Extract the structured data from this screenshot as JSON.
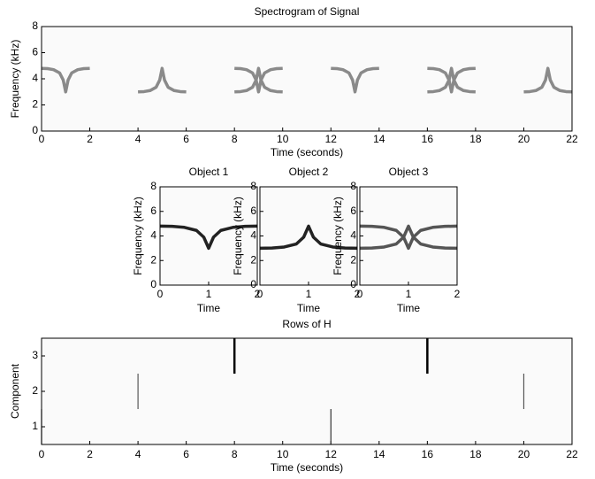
{
  "chart_data": [
    {
      "type": "line",
      "title": "Spectrogram of Signal",
      "xlabel": "Time (seconds)",
      "ylabel": "Frequency (kHz)",
      "xlim": [
        0,
        22
      ],
      "xticks": [
        0,
        2,
        4,
        6,
        8,
        10,
        12,
        14,
        16,
        18,
        20,
        22
      ],
      "ylim": [
        0,
        8
      ],
      "yticks": [
        0,
        2,
        4,
        6,
        8
      ],
      "series": [
        {
          "color": "#8a8a8a",
          "x": [
            0,
            0.25,
            0.5,
            0.75,
            0.9,
            1,
            1.1,
            1.25,
            1.5,
            1.75,
            2
          ],
          "values": [
            4.8,
            4.78,
            4.7,
            4.45,
            3.9,
            3.0,
            3.9,
            4.45,
            4.7,
            4.78,
            4.8
          ]
        },
        {
          "color": "#8a8a8a",
          "x": [
            4,
            4.25,
            4.5,
            4.75,
            4.9,
            5,
            5.1,
            5.25,
            5.5,
            5.75,
            6
          ],
          "values": [
            3.0,
            3.02,
            3.1,
            3.35,
            3.9,
            4.8,
            3.9,
            3.35,
            3.1,
            3.02,
            3.0
          ]
        },
        {
          "color": "#8a8a8a",
          "x": [
            8,
            8.25,
            8.5,
            8.75,
            8.9,
            9,
            9.1,
            9.25,
            9.5,
            9.75,
            10
          ],
          "values": [
            4.8,
            4.78,
            4.7,
            4.45,
            3.9,
            3.0,
            3.9,
            4.45,
            4.7,
            4.78,
            4.8
          ]
        },
        {
          "color": "#8a8a8a",
          "x": [
            8,
            8.25,
            8.5,
            8.75,
            8.9,
            9,
            9.1,
            9.25,
            9.5,
            9.75,
            10
          ],
          "values": [
            3.0,
            3.02,
            3.1,
            3.35,
            3.9,
            4.8,
            3.9,
            3.35,
            3.1,
            3.02,
            3.0
          ]
        },
        {
          "color": "#8a8a8a",
          "x": [
            12,
            12.25,
            12.5,
            12.75,
            12.9,
            13,
            13.1,
            13.25,
            13.5,
            13.75,
            14
          ],
          "values": [
            4.8,
            4.78,
            4.7,
            4.45,
            3.9,
            3.0,
            3.9,
            4.45,
            4.7,
            4.78,
            4.8
          ]
        },
        {
          "color": "#8a8a8a",
          "x": [
            16,
            16.25,
            16.5,
            16.75,
            16.9,
            17,
            17.1,
            17.25,
            17.5,
            17.75,
            18
          ],
          "values": [
            4.8,
            4.78,
            4.7,
            4.45,
            3.9,
            3.0,
            3.9,
            4.45,
            4.7,
            4.78,
            4.8
          ]
        },
        {
          "color": "#8a8a8a",
          "x": [
            16,
            16.25,
            16.5,
            16.75,
            16.9,
            17,
            17.1,
            17.25,
            17.5,
            17.75,
            18
          ],
          "values": [
            3.0,
            3.02,
            3.1,
            3.35,
            3.9,
            4.8,
            3.9,
            3.35,
            3.1,
            3.02,
            3.0
          ]
        },
        {
          "color": "#8a8a8a",
          "x": [
            20,
            20.25,
            20.5,
            20.75,
            20.9,
            21,
            21.1,
            21.25,
            21.5,
            21.75,
            22
          ],
          "values": [
            3.0,
            3.02,
            3.1,
            3.35,
            3.9,
            4.8,
            3.9,
            3.35,
            3.1,
            3.02,
            3.0
          ]
        }
      ]
    },
    {
      "type": "line",
      "title": "Object 1",
      "xlabel": "Time",
      "ylabel": "Frequency (kHz)",
      "xlim": [
        0,
        2
      ],
      "xticks": [
        0,
        1,
        2
      ],
      "ylim": [
        0,
        8
      ],
      "yticks": [
        0,
        2,
        4,
        6,
        8
      ],
      "series": [
        {
          "color": "#222222",
          "x": [
            0,
            0.25,
            0.5,
            0.75,
            0.9,
            1,
            1.1,
            1.25,
            1.5,
            1.75,
            2
          ],
          "values": [
            4.8,
            4.78,
            4.7,
            4.45,
            3.9,
            3.0,
            3.9,
            4.45,
            4.7,
            4.78,
            4.8
          ]
        }
      ]
    },
    {
      "type": "line",
      "title": "Object 2",
      "xlabel": "Time",
      "ylabel": "Frequency (kHz)",
      "xlim": [
        0,
        2
      ],
      "xticks": [
        0,
        1,
        2
      ],
      "ylim": [
        0,
        8
      ],
      "yticks": [
        0,
        2,
        4,
        6,
        8
      ],
      "series": [
        {
          "color": "#222222",
          "x": [
            0,
            0.25,
            0.5,
            0.75,
            0.9,
            1,
            1.1,
            1.25,
            1.5,
            1.75,
            2
          ],
          "values": [
            3.0,
            3.02,
            3.1,
            3.35,
            3.9,
            4.8,
            3.9,
            3.35,
            3.1,
            3.02,
            3.0
          ]
        }
      ]
    },
    {
      "type": "line",
      "title": "Object 3",
      "xlabel": "Time",
      "ylabel": "Frequency (kHz)",
      "xlim": [
        0,
        2
      ],
      "xticks": [
        0,
        1,
        2
      ],
      "ylim": [
        0,
        8
      ],
      "yticks": [
        0,
        2,
        4,
        6,
        8
      ],
      "series": [
        {
          "color": "#555555",
          "x": [
            0,
            0.25,
            0.5,
            0.75,
            0.9,
            1,
            1.1,
            1.25,
            1.5,
            1.75,
            2
          ],
          "values": [
            4.8,
            4.78,
            4.7,
            4.45,
            3.9,
            3.0,
            3.9,
            4.45,
            4.7,
            4.78,
            4.8
          ]
        },
        {
          "color": "#555555",
          "x": [
            0,
            0.25,
            0.5,
            0.75,
            0.9,
            1,
            1.1,
            1.25,
            1.5,
            1.75,
            2
          ],
          "values": [
            3.0,
            3.02,
            3.1,
            3.35,
            3.9,
            4.8,
            3.9,
            3.35,
            3.1,
            3.02,
            3.0
          ]
        }
      ]
    },
    {
      "type": "stem",
      "title": "Rows of H",
      "xlabel": "Time (seconds)",
      "ylabel": "Component",
      "xlim": [
        0,
        22
      ],
      "xticks": [
        0,
        2,
        4,
        6,
        8,
        10,
        12,
        14,
        16,
        18,
        20,
        22
      ],
      "ylim": [
        0.5,
        3.5
      ],
      "yticks": [
        1,
        2,
        3
      ],
      "series": [
        {
          "color": "#333333",
          "line_width": 1.2,
          "x": [
            0,
            12
          ],
          "values": [
            1,
            1
          ]
        },
        {
          "color": "#555555",
          "line_width": 1.2,
          "x": [
            4,
            20
          ],
          "values": [
            2,
            2
          ]
        },
        {
          "color": "#000000",
          "line_width": 2.5,
          "x": [
            8,
            16
          ],
          "values": [
            3,
            3
          ]
        }
      ]
    }
  ]
}
